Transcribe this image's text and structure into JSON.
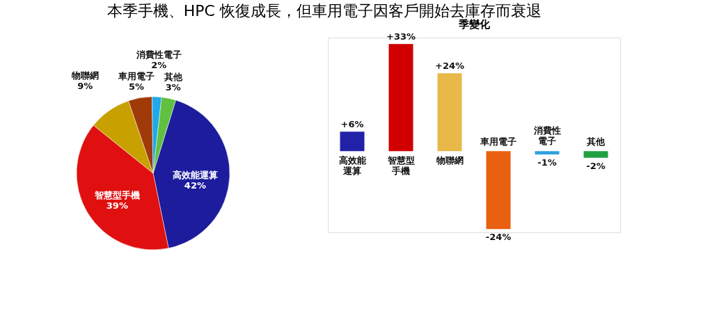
{
  "chart_data": [
    {
      "type": "pie",
      "title": "本季手機、HPC 恢復成長，但車用電子因客戶開始去庫存而衰退",
      "categories": [
        "高效能運算",
        "智慧型手機",
        "物聯網",
        "車用電子",
        "消費性電子",
        "其他"
      ],
      "values": [
        42,
        39,
        9,
        5,
        2,
        3
      ],
      "value_labels": [
        "42%",
        "39%",
        "9%",
        "5%",
        "2%",
        "3%"
      ],
      "colors": [
        "#1c1c9c",
        "#e01010",
        "#c8a000",
        "#a03a08",
        "#20a8e8",
        "#60c040"
      ],
      "legend": false
    },
    {
      "type": "bar",
      "title": "季變化",
      "categories": [
        "高效能運算",
        "智慧型手機",
        "物聯網",
        "車用電子",
        "消費性電子",
        "其他"
      ],
      "values": [
        6,
        33,
        24,
        -24,
        -1,
        -2
      ],
      "value_labels": [
        "+6%",
        "+33%",
        "+24%",
        "-24%",
        "-1%",
        "-2%"
      ],
      "colors": [
        "#2222a8",
        "#d00000",
        "#e8b848",
        "#e86010",
        "#30a0e0",
        "#20a040"
      ],
      "legend": false
    }
  ]
}
